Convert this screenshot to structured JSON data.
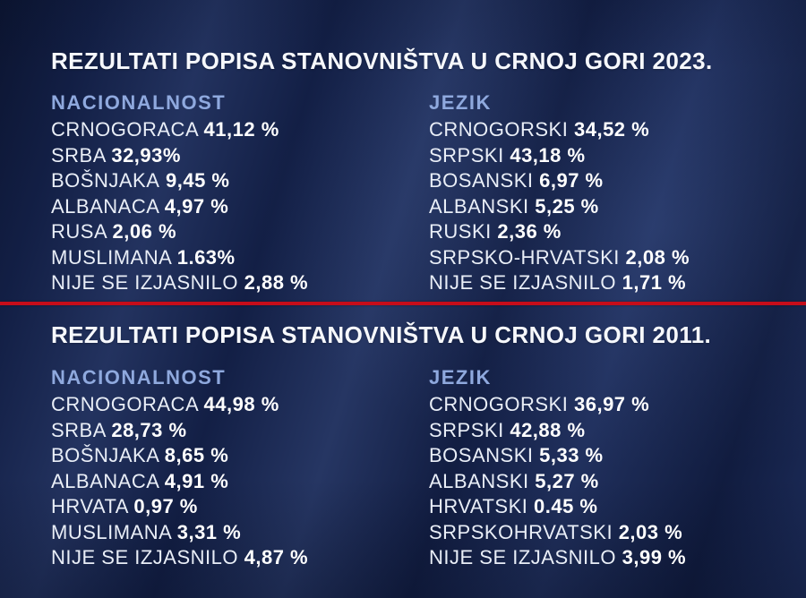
{
  "colors": {
    "background_navy": "#16244f",
    "title_white": "#f6f8fc",
    "header_blue": "#8fa9de",
    "body_text": "#e9eef7",
    "divider_red": "#c60d1a"
  },
  "sections": [
    {
      "title": "REZULTATI POPISA STANOVNIŠTVA U CRNOJ GORI 2023.",
      "columns": [
        {
          "header": "NACIONALNOST",
          "rows": [
            {
              "label": "CRNOGORACA",
              "value": "41,12 %"
            },
            {
              "label": "SRBA",
              "value": "32,93%"
            },
            {
              "label": "BOŠNJAKA",
              "value": "9,45 %"
            },
            {
              "label": "ALBANACA",
              "value": "4,97 %"
            },
            {
              "label": "RUSA",
              "value": "2,06 %"
            },
            {
              "label": "MUSLIMANA",
              "value": "1.63%"
            },
            {
              "label": "NIJE SE IZJASNILO",
              "value": "2,88 %"
            }
          ]
        },
        {
          "header": "JEZIK",
          "rows": [
            {
              "label": "CRNOGORSKI",
              "value": "34,52 %"
            },
            {
              "label": "SRPSKI",
              "value": "43,18 %"
            },
            {
              "label": "BOSANSKI",
              "value": "6,97 %"
            },
            {
              "label": "ALBANSKI",
              "value": "5,25 %"
            },
            {
              "label": "RUSKI",
              "value": "2,36 %"
            },
            {
              "label": "SRPSKO-HRVATSKI",
              "value": "2,08 %"
            },
            {
              "label": "NIJE SE IZJASNILO",
              "value": "1,71 %"
            }
          ]
        }
      ]
    },
    {
      "title": "REZULTATI POPISA STANOVNIŠTVA U CRNOJ GORI 2011.",
      "columns": [
        {
          "header": "NACIONALNOST",
          "rows": [
            {
              "label": "CRNOGORACA",
              "value": "44,98 %"
            },
            {
              "label": "SRBA",
              "value": "28,73 %"
            },
            {
              "label": "BOŠNJAKA",
              "value": "8,65 %"
            },
            {
              "label": "ALBANACA",
              "value": "4,91 %"
            },
            {
              "label": "HRVATA",
              "value": "0,97 %"
            },
            {
              "label": "MUSLIMANA",
              "value": "3,31 %"
            },
            {
              "label": "NIJE SE IZJASNILO",
              "value": "4,87 %"
            }
          ]
        },
        {
          "header": "JEZIK",
          "rows": [
            {
              "label": "CRNOGORSKI",
              "value": "36,97 %"
            },
            {
              "label": "SRPSKI",
              "value": "42,88 %"
            },
            {
              "label": "BOSANSKI",
              "value": "5,33 %"
            },
            {
              "label": "ALBANSKI",
              "value": "5,27 %"
            },
            {
              "label": "HRVATSKI",
              "value": "0.45 %"
            },
            {
              "label": "SRPSKOHRVATSKI",
              "value": "2,03 %"
            },
            {
              "label": "NIJE SE IZJASNILO",
              "value": "3,99 %"
            }
          ]
        }
      ]
    }
  ],
  "chart_data": [
    {
      "type": "table",
      "title": "REZULTATI POPISA STANOVNIŠTVA U CRNOJ GORI 2023.",
      "unit": "%",
      "tables": [
        {
          "header": "NACIONALNOST",
          "categories": [
            "CRNOGORACA",
            "SRBA",
            "BOŠNJAKA",
            "ALBANACA",
            "RUSA",
            "MUSLIMANA",
            "NIJE SE IZJASNILO"
          ],
          "values": [
            41.12,
            32.93,
            9.45,
            4.97,
            2.06,
            1.63,
            2.88
          ]
        },
        {
          "header": "JEZIK",
          "categories": [
            "CRNOGORSKI",
            "SRPSKI",
            "BOSANSKI",
            "ALBANSKI",
            "RUSKI",
            "SRPSKO-HRVATSKI",
            "NIJE SE IZJASNILO"
          ],
          "values": [
            34.52,
            43.18,
            6.97,
            5.25,
            2.36,
            2.08,
            1.71
          ]
        }
      ]
    },
    {
      "type": "table",
      "title": "REZULTATI POPISA STANOVNIŠTVA U CRNOJ GORI 2011.",
      "unit": "%",
      "tables": [
        {
          "header": "NACIONALNOST",
          "categories": [
            "CRNOGORACA",
            "SRBA",
            "BOŠNJAKA",
            "ALBANACA",
            "HRVATA",
            "MUSLIMANA",
            "NIJE SE IZJASNILO"
          ],
          "values": [
            44.98,
            28.73,
            8.65,
            4.91,
            0.97,
            3.31,
            4.87
          ]
        },
        {
          "header": "JEZIK",
          "categories": [
            "CRNOGORSKI",
            "SRPSKI",
            "BOSANSKI",
            "ALBANSKI",
            "HRVATSKI",
            "SRPSKOHRVATSKI",
            "NIJE SE IZJASNILO"
          ],
          "values": [
            36.97,
            42.88,
            5.33,
            5.27,
            0.45,
            2.03,
            3.99
          ]
        }
      ]
    }
  ]
}
